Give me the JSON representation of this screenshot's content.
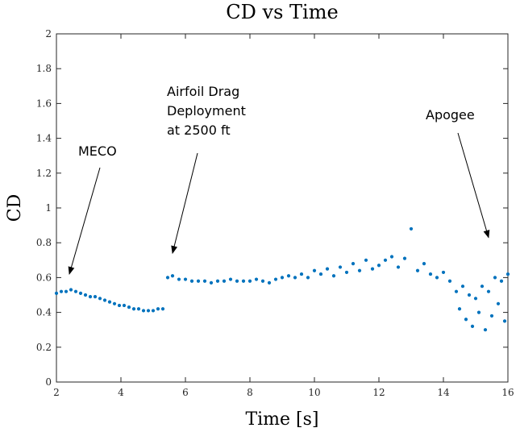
{
  "chart_data": {
    "type": "scatter",
    "title": "CD vs Time",
    "xlabel": "Time [s]",
    "ylabel": "CD",
    "xlim": [
      2,
      16
    ],
    "ylim": [
      0,
      2
    ],
    "xticks": [
      2,
      4,
      6,
      8,
      10,
      12,
      14,
      16
    ],
    "xtick_labels": [
      "2",
      "4",
      "6",
      "8",
      "10",
      "12",
      "14",
      "16"
    ],
    "yticks": [
      0,
      0.2,
      0.4,
      0.6,
      0.8,
      1,
      1.2,
      1.4,
      1.6,
      1.8,
      2
    ],
    "ytick_labels": [
      "0",
      "0.2",
      "0.4",
      "0.6",
      "0.8",
      "1",
      "1.2",
      "1.4",
      "1.6",
      "1.8",
      "2"
    ],
    "grid": false,
    "marker_color": "#0072BD",
    "series": [
      {
        "x": [
          2.0,
          2.15,
          2.3,
          2.45,
          2.6,
          2.75,
          2.9,
          3.05,
          3.2,
          3.35,
          3.5,
          3.65,
          3.8,
          3.95,
          4.1,
          4.25,
          4.4,
          4.55,
          4.7,
          4.85,
          5.0,
          5.15,
          5.3,
          5.45,
          5.6,
          5.8,
          6.0,
          6.2,
          6.4,
          6.6,
          6.8,
          7.0,
          7.2,
          7.4,
          7.6,
          7.8,
          8.0,
          8.2,
          8.4,
          8.6,
          8.8,
          9.0,
          9.2,
          9.4,
          9.6,
          9.8,
          10.0,
          10.2,
          10.4,
          10.6,
          10.8,
          11.0,
          11.2,
          11.4,
          11.6,
          11.8,
          12.0,
          12.2,
          12.4,
          12.6,
          12.8,
          13.0,
          13.2,
          13.4,
          13.6,
          13.8,
          14.0,
          14.2,
          14.4,
          14.5,
          14.6,
          14.7,
          14.8,
          14.9,
          15.0,
          15.1,
          15.2,
          15.3,
          15.4,
          15.5,
          15.6,
          15.7,
          15.8,
          15.9,
          16.0
        ],
        "y": [
          0.51,
          0.52,
          0.52,
          0.53,
          0.52,
          0.51,
          0.5,
          0.49,
          0.49,
          0.48,
          0.47,
          0.46,
          0.45,
          0.44,
          0.44,
          0.43,
          0.42,
          0.42,
          0.41,
          0.41,
          0.41,
          0.42,
          0.42,
          0.6,
          0.61,
          0.59,
          0.59,
          0.58,
          0.58,
          0.58,
          0.57,
          0.58,
          0.58,
          0.59,
          0.58,
          0.58,
          0.58,
          0.59,
          0.58,
          0.57,
          0.59,
          0.6,
          0.61,
          0.6,
          0.62,
          0.6,
          0.64,
          0.62,
          0.65,
          0.61,
          0.66,
          0.63,
          0.68,
          0.64,
          0.7,
          0.65,
          0.67,
          0.7,
          0.72,
          0.66,
          0.71,
          0.88,
          0.64,
          0.68,
          0.62,
          0.6,
          0.63,
          0.58,
          0.52,
          0.42,
          0.55,
          0.36,
          0.5,
          0.32,
          0.48,
          0.4,
          0.55,
          0.3,
          0.52,
          0.38,
          0.6,
          0.45,
          0.58,
          0.35,
          0.62
        ]
      }
    ],
    "annotations": [
      {
        "lines": [
          "MECO"
        ],
        "arrow_to": [
          2.4,
          0.62
        ]
      },
      {
        "lines": [
          "Airfoil Drag",
          "Deployment",
          "at 2500 ft"
        ],
        "arrow_to": [
          5.6,
          0.74
        ]
      },
      {
        "lines": [
          "Apogee"
        ],
        "arrow_to": [
          15.4,
          0.83
        ]
      }
    ]
  }
}
